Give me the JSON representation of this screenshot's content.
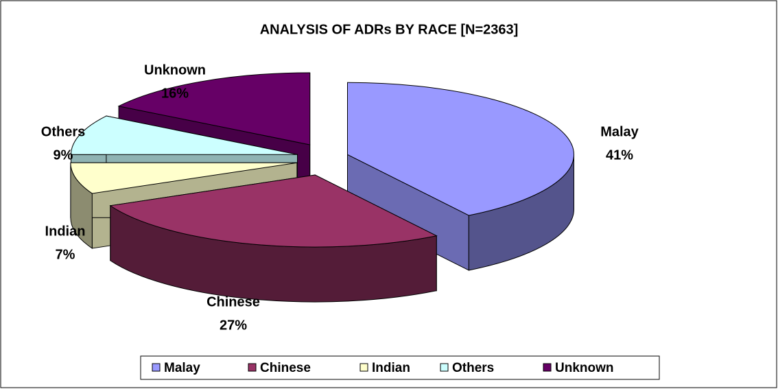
{
  "chart_data": {
    "type": "pie",
    "title": "ANALYSIS OF ADRs BY RACE [N=2363]",
    "categories": [
      "Malay",
      "Chinese",
      "Indian",
      "Others",
      "Unknown"
    ],
    "values": [
      41,
      27,
      7,
      9,
      16
    ],
    "value_labels": [
      "41%",
      "27%",
      "7%",
      "9%",
      "16%"
    ],
    "colors": [
      "#9999ff",
      "#993366",
      "#ffffcc",
      "#ccffff",
      "#660066"
    ],
    "legend": "bottom"
  }
}
